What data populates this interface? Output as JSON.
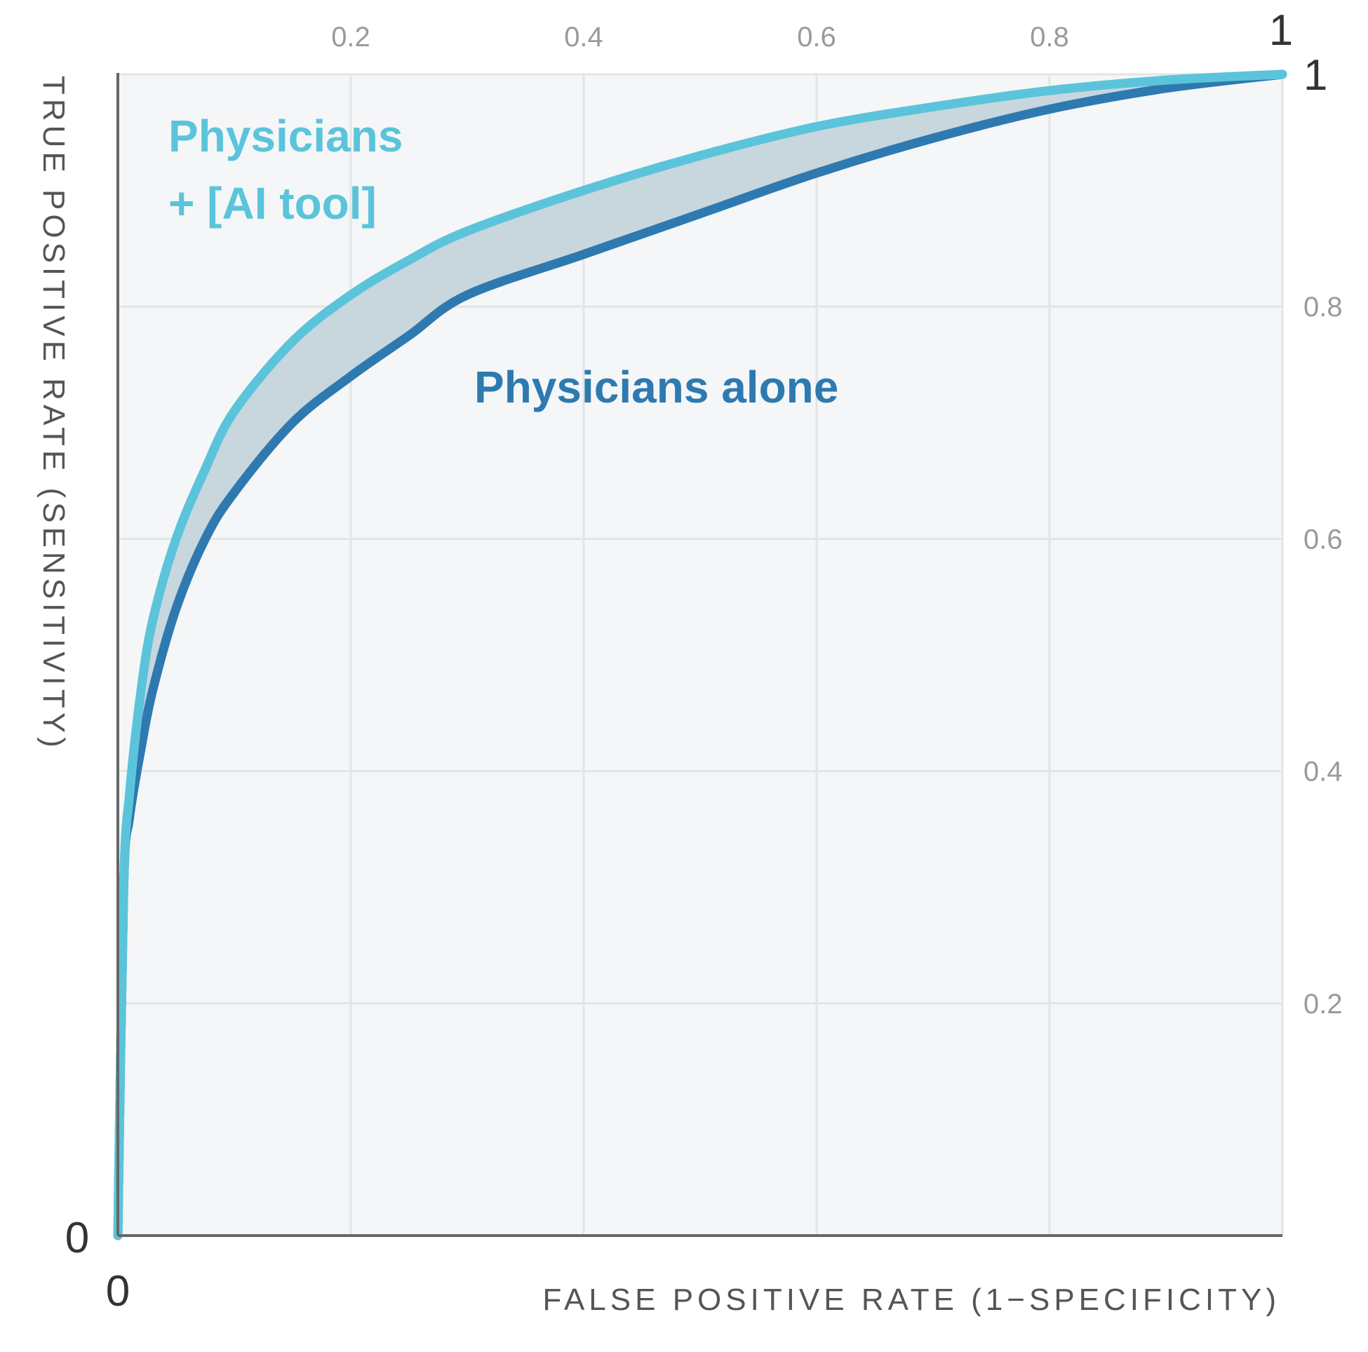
{
  "chart_data": {
    "type": "line",
    "xlabel": "FALSE POSITIVE RATE (1−SPECIFICITY)",
    "ylabel": "TRUE POSITIVE RATE (SENSITIVITY)",
    "xlim": [
      0,
      1
    ],
    "ylim": [
      0,
      1
    ],
    "x_ticks": [
      "0.2",
      "0.4",
      "0.6",
      "0.8",
      "1"
    ],
    "y_ticks": [
      "1",
      "0.8",
      "0.6",
      "0.4",
      "0.2"
    ],
    "origin_x_label": "0",
    "origin_y_label": "0",
    "grid": true,
    "area_between_series": true,
    "series": [
      {
        "name": "Physicians\n+ [AI tool]",
        "color": "#5bc4da",
        "x": [
          0,
          0.005,
          0.01,
          0.02,
          0.03,
          0.05,
          0.075,
          0.1,
          0.15,
          0.2,
          0.25,
          0.3,
          0.4,
          0.5,
          0.6,
          0.7,
          0.8,
          0.9,
          1.0
        ],
        "y": [
          0,
          0.3,
          0.38,
          0.47,
          0.53,
          0.6,
          0.66,
          0.71,
          0.77,
          0.81,
          0.84,
          0.865,
          0.9,
          0.93,
          0.955,
          0.972,
          0.986,
          0.995,
          1.0
        ]
      },
      {
        "name": "Physicians alone",
        "color": "#2e7ab0",
        "x": [
          0,
          0.005,
          0.01,
          0.02,
          0.03,
          0.05,
          0.075,
          0.1,
          0.15,
          0.2,
          0.25,
          0.3,
          0.4,
          0.5,
          0.6,
          0.7,
          0.8,
          0.9,
          1.0
        ],
        "y": [
          0,
          0.3,
          0.36,
          0.42,
          0.47,
          0.54,
          0.6,
          0.64,
          0.7,
          0.74,
          0.775,
          0.81,
          0.845,
          0.88,
          0.915,
          0.945,
          0.97,
          0.988,
          1.0
        ]
      }
    ]
  },
  "colors": {
    "plot_background": "#f4f6f8",
    "grid": "#e2e4e6",
    "axis": "#666666",
    "area_between": "#c8d6de"
  }
}
